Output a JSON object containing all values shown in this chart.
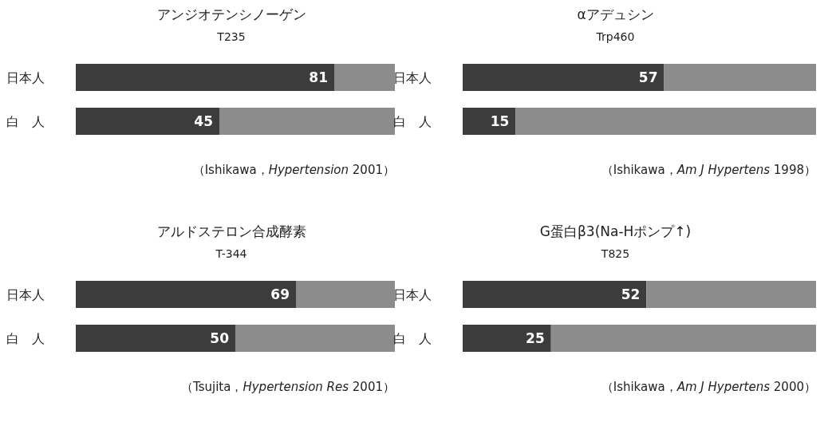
{
  "chart_data": [
    {
      "type": "bar",
      "orientation": "horizontal",
      "stacked": true,
      "title": "アンジオテンシノーゲン",
      "subtitle": "T235",
      "categories": [
        "日本人",
        "白　人"
      ],
      "xlim": [
        0,
        100
      ],
      "series": [
        {
          "color": "#3c3c3c",
          "values": [
            81,
            45
          ],
          "value_labels": [
            "81",
            "45"
          ]
        },
        {
          "color": "#8c8c8c",
          "values": [
            19,
            55
          ]
        }
      ],
      "annotations": [
        "（Ishikawa，*Hypertension* 2001）"
      ]
    },
    {
      "type": "bar",
      "orientation": "horizontal",
      "stacked": true,
      "title": "αアデュシン",
      "subtitle": "Trp460",
      "categories": [
        "日本人",
        "白　人"
      ],
      "xlim": [
        0,
        100
      ],
      "series": [
        {
          "color": "#3c3c3c",
          "values": [
            57,
            15
          ],
          "value_labels": [
            "57",
            "15"
          ]
        },
        {
          "color": "#8c8c8c",
          "values": [
            43,
            85
          ]
        }
      ],
      "annotations": [
        "（Ishikawa，*Am J Hypertens* 1998）"
      ]
    },
    {
      "type": "bar",
      "orientation": "horizontal",
      "stacked": true,
      "title": "アルドステロン合成酵素",
      "subtitle": "T-344",
      "categories": [
        "日本人",
        "白　人"
      ],
      "xlim": [
        0,
        100
      ],
      "series": [
        {
          "color": "#3c3c3c",
          "values": [
            69,
            50
          ],
          "value_labels": [
            "69",
            "50"
          ]
        },
        {
          "color": "#8c8c8c",
          "values": [
            31,
            50
          ]
        }
      ],
      "annotations": [
        "（Tsujita，*Hypertension Res* 2001）"
      ]
    },
    {
      "type": "bar",
      "orientation": "horizontal",
      "stacked": true,
      "title": "G蛋白β3(Na-Hポンプ↑)",
      "subtitle": "T825",
      "categories": [
        "日本人",
        "白　人"
      ],
      "xlim": [
        0,
        100
      ],
      "series": [
        {
          "color": "#3c3c3c",
          "values": [
            52,
            25
          ],
          "value_labels": [
            "52",
            "25"
          ]
        },
        {
          "color": "#8c8c8c",
          "values": [
            48,
            75
          ]
        }
      ],
      "annotations": [
        "（Ishikawa，*Am J Hypertens* 2000）"
      ]
    }
  ]
}
